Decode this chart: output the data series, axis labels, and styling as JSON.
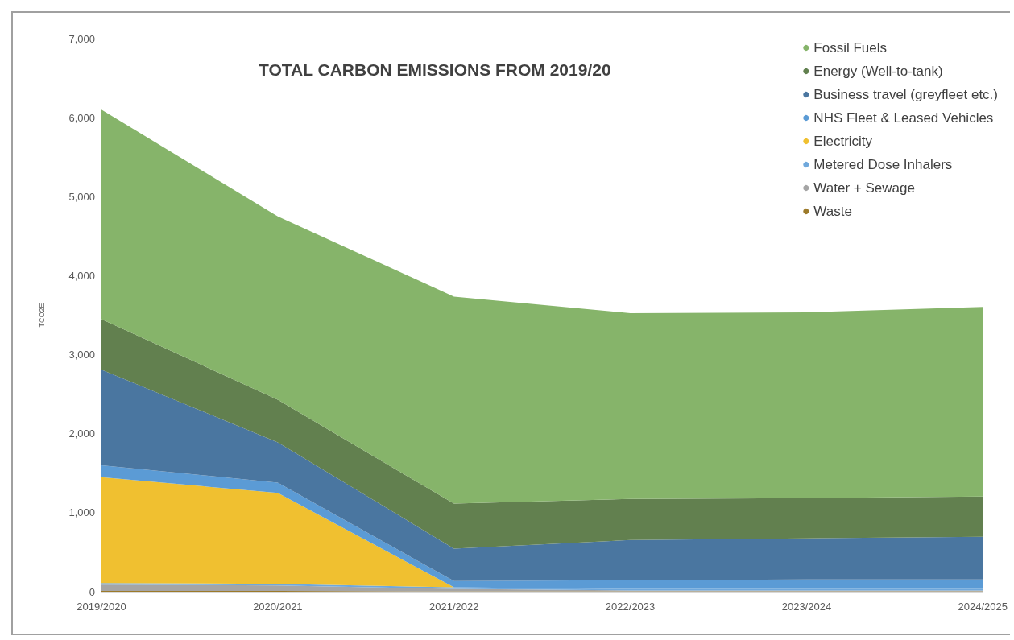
{
  "chart_data": {
    "type": "area",
    "title": "TOTAL CARBON EMISSIONS FROM 2019/20",
    "ylabel": "TCO2E",
    "categories": [
      "2019/2020",
      "2020/2021",
      "2021/2022",
      "2022/2023",
      "2023/2024",
      "2024/2025"
    ],
    "stacked": true,
    "ylim": [
      0,
      7000
    ],
    "yticks": [
      {
        "value": 0,
        "label": "0"
      },
      {
        "value": 1000,
        "label": "1,000"
      },
      {
        "value": 2000,
        "label": "2,000"
      },
      {
        "value": 3000,
        "label": "3,000"
      },
      {
        "value": 4000,
        "label": "4,000"
      },
      {
        "value": 5000,
        "label": "5,000"
      },
      {
        "value": 6000,
        "label": "6,000"
      },
      {
        "value": 7000,
        "label": "7,000"
      }
    ],
    "grid": false,
    "legend": "top right",
    "series": [
      {
        "name": "Waste",
        "color": "#9c7a2a",
        "values": [
          10,
          10,
          5,
          5,
          5,
          5
        ]
      },
      {
        "name": "Water + Sewage",
        "color": "#a5a5a5",
        "values": [
          80,
          70,
          30,
          10,
          10,
          10
        ]
      },
      {
        "name": "Metered Dose Inhalers",
        "color": "#6fa8dc",
        "values": [
          20,
          20,
          20,
          20,
          20,
          20
        ]
      },
      {
        "name": "Electricity",
        "color": "#f0c030",
        "values": [
          1340,
          1150,
          0,
          0,
          0,
          0
        ]
      },
      {
        "name": "NHS Fleet & Leased Vehicles",
        "color": "#5b9bd5",
        "values": [
          150,
          130,
          80,
          110,
          120,
          120
        ]
      },
      {
        "name": "Business travel (greyfleet etc.)",
        "color": "#4a76a0",
        "values": [
          1210,
          510,
          410,
          510,
          520,
          540
        ]
      },
      {
        "name": "Energy (Well-to-tank)",
        "color": "#62804f",
        "values": [
          640,
          540,
          570,
          520,
          510,
          510
        ]
      },
      {
        "name": "Fossil Fuels",
        "color": "#86b46a",
        "values": [
          2650,
          2320,
          2620,
          2350,
          2350,
          2400
        ]
      }
    ]
  }
}
